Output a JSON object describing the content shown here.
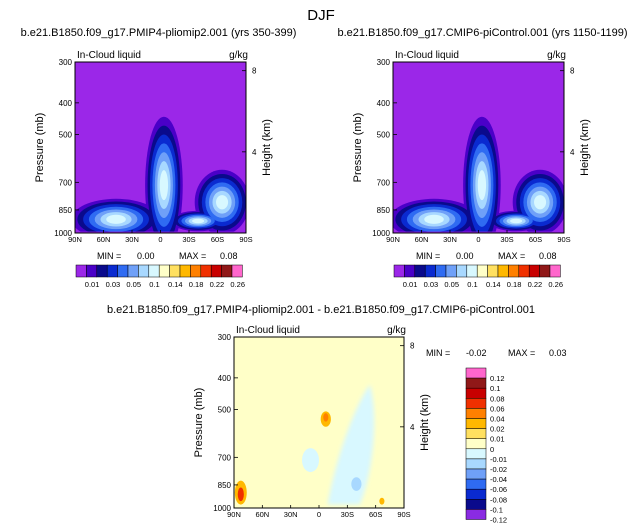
{
  "figure": {
    "season": "DJF",
    "diff_title": "b.e21.B1850.f09_g17.PMIP4-pliomip2.001 - b.e21.B1850.f09_g17.CMIP6-piControl.001"
  },
  "colors": {
    "abs": [
      "#9b27e8",
      "#4a00c8",
      "#0a0a8c",
      "#0a2ad0",
      "#2f6bf2",
      "#6fa0f8",
      "#a8d8ff",
      "#d8f8ff",
      "#ffffc8",
      "#ffe060",
      "#ffb800",
      "#ff8000",
      "#f03000",
      "#c80000",
      "#901818",
      "#ff66cc"
    ],
    "diff": [
      "#8a2be2",
      "#0a0a8c",
      "#0a2ad0",
      "#2f6bf2",
      "#6fa0f8",
      "#a8d8ff",
      "#d8f8ff",
      "#ffffc8",
      "#ffe060",
      "#ffb800",
      "#ff8000",
      "#f03000",
      "#c80000",
      "#901818",
      "#ff66cc"
    ]
  },
  "chart_data": [
    {
      "type": "contour",
      "title": "b.e21.B1850.f09_g17.PMIP4-pliomip2.001 (yrs 350-399)",
      "variable_label": "In-Cloud liquid",
      "units": "g/kg",
      "ylabel": "Pressure (mb)",
      "ylabel_right": "Height (km)",
      "x_ticks": [
        "90N",
        "60N",
        "30N",
        "0",
        "30S",
        "60S",
        "90S"
      ],
      "y_ticks": [
        "300",
        "400",
        "500",
        "700",
        "850",
        "1000"
      ],
      "y_ticks_right": [
        "8",
        "4"
      ],
      "ylim": [
        1000,
        300
      ],
      "stats": {
        "min_label": "MIN =",
        "min": "0.00",
        "max_label": "MAX =",
        "max": "0.08"
      },
      "levels": [
        "0.01",
        "0.03",
        "0.05",
        "0.1",
        "0.14",
        "0.18",
        "0.22",
        "0.26"
      ]
    },
    {
      "type": "contour",
      "title": "b.e21.B1850.f09_g17.CMIP6-piControl.001 (yrs 1150-1199)",
      "variable_label": "In-Cloud liquid",
      "units": "g/kg",
      "ylabel": "Pressure (mb)",
      "ylabel_right": "Height (km)",
      "x_ticks": [
        "90N",
        "60N",
        "30N",
        "0",
        "30S",
        "60S",
        "90S"
      ],
      "y_ticks": [
        "300",
        "400",
        "500",
        "700",
        "850",
        "1000"
      ],
      "y_ticks_right": [
        "8",
        "4"
      ],
      "ylim": [
        1000,
        300
      ],
      "stats": {
        "min_label": "MIN =",
        "min": "0.00",
        "max_label": "MAX =",
        "max": "0.08"
      },
      "levels": [
        "0.01",
        "0.03",
        "0.05",
        "0.1",
        "0.14",
        "0.18",
        "0.22",
        "0.26"
      ]
    },
    {
      "type": "contour",
      "title": "",
      "variable_label": "In-Cloud liquid",
      "units": "g/kg",
      "ylabel": "Pressure (mb)",
      "ylabel_right": "Height (km)",
      "x_ticks": [
        "90N",
        "60N",
        "30N",
        "0",
        "30S",
        "60S",
        "90S"
      ],
      "y_ticks": [
        "300",
        "400",
        "500",
        "700",
        "850",
        "1000"
      ],
      "y_ticks_right": [
        "8",
        "4"
      ],
      "ylim": [
        1000,
        300
      ],
      "stats": {
        "min_label": "MIN =",
        "min": "-0.02",
        "max_label": "MAX =",
        "max": "0.03"
      },
      "levels": [
        "-0.12",
        "-0.1",
        "-0.08",
        "-0.06",
        "-0.04",
        "-0.02",
        "-0.01",
        "0",
        "0.01",
        "0.02",
        "0.04",
        "0.06",
        "0.08",
        "0.1",
        "0.12"
      ]
    }
  ]
}
